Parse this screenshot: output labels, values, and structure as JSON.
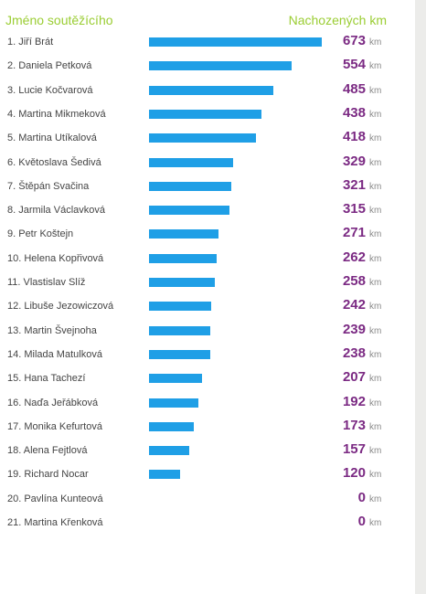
{
  "header": {
    "name_label": "Jméno soutěžícího",
    "km_label": "Nachozených km"
  },
  "colors": {
    "bar": "#1f9fe6",
    "value": "#7b2a83",
    "header": "#9acd32"
  },
  "chart_data": {
    "type": "bar",
    "orientation": "horizontal",
    "unit": "km",
    "xlim": [
      0,
      673
    ],
    "rows": [
      {
        "name": "1. Jiří Brát",
        "value": 673
      },
      {
        "name": "2. Daniela Petková",
        "value": 554
      },
      {
        "name": "3. Lucie Kočvarová",
        "value": 485
      },
      {
        "name": "4. Martina Mikmeková",
        "value": 438
      },
      {
        "name": "5. Martina Utíkalová",
        "value": 418
      },
      {
        "name": "6. Květoslava Šedivá",
        "value": 329
      },
      {
        "name": "7. Štěpán Svačina",
        "value": 321
      },
      {
        "name": "8. Jarmila Václavková",
        "value": 315
      },
      {
        "name": "9. Petr Koštejn",
        "value": 271
      },
      {
        "name": "10. Helena Kopřivová",
        "value": 262
      },
      {
        "name": "11. Vlastislav Slíž",
        "value": 258
      },
      {
        "name": "12. Libuše Jezowiczová",
        "value": 242
      },
      {
        "name": "13. Martin Švejnoha",
        "value": 239
      },
      {
        "name": "14. Milada Matulková",
        "value": 238
      },
      {
        "name": "15. Hana Tachezí",
        "value": 207
      },
      {
        "name": "16. Naďa Jeřábková",
        "value": 192
      },
      {
        "name": "17. Monika Kefurtová",
        "value": 173
      },
      {
        "name": "18. Alena Fejtlová",
        "value": 157
      },
      {
        "name": "19. Richard Nocar",
        "value": 120
      },
      {
        "name": "20. Pavlína Kunteová",
        "value": 0
      },
      {
        "name": "21. Martina Křenková",
        "value": 0
      }
    ]
  }
}
